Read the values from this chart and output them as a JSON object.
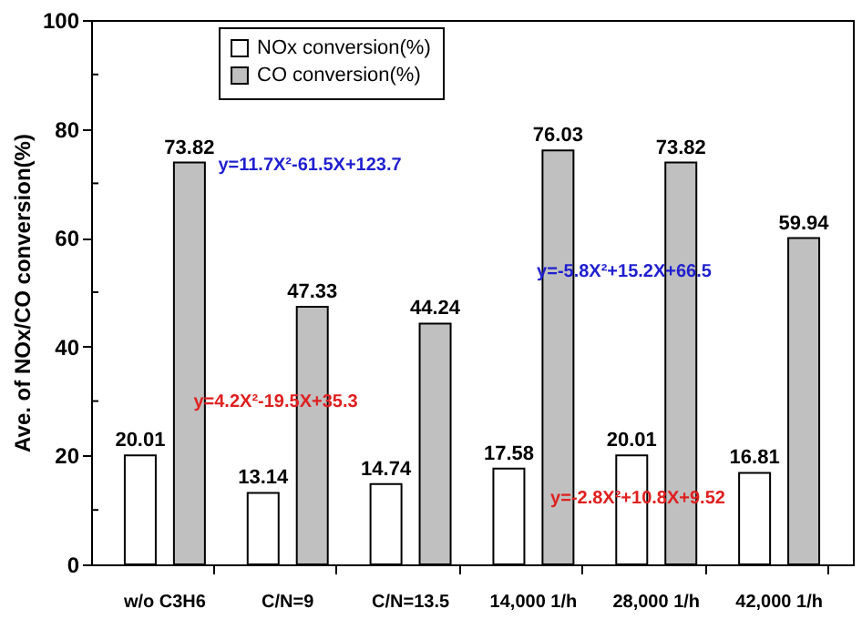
{
  "chart_data": {
    "type": "bar",
    "ylabel": "Ave. of NOx/CO conversion(%)",
    "categories": [
      "w/o C3H6",
      "C/N=9",
      "C/N=13.5",
      "14,000 1/h",
      "28,000 1/h",
      "42,000 1/h"
    ],
    "series": [
      {
        "name": "NOx conversion(%)",
        "color": "#ffffff",
        "values": [
          20.01,
          13.14,
          14.74,
          17.58,
          20.01,
          16.81
        ]
      },
      {
        "name": "CO conversion(%)",
        "color": "#c0c0c0",
        "values": [
          73.82,
          47.33,
          44.24,
          76.03,
          73.82,
          59.94
        ]
      }
    ],
    "ylim": [
      0,
      100
    ],
    "yticks": [
      0,
      {
        "value": 10,
        "label": null
      },
      20,
      {
        "value": 30,
        "label": null
      },
      40,
      {
        "value": 50,
        "label": null
      },
      60,
      {
        "value": 70,
        "label": null
      },
      80,
      {
        "value": 90,
        "label": null
      },
      100
    ],
    "data_labels": true,
    "legend": "top left",
    "grid": false,
    "annotations": [
      "y=11.7X²-61.5X+123.7",
      "y=-5.8X²+15.2X+66.5",
      "y=4.2X²-19.5X+35.3",
      "y=-2.8X²+10.8X+9.52"
    ]
  }
}
